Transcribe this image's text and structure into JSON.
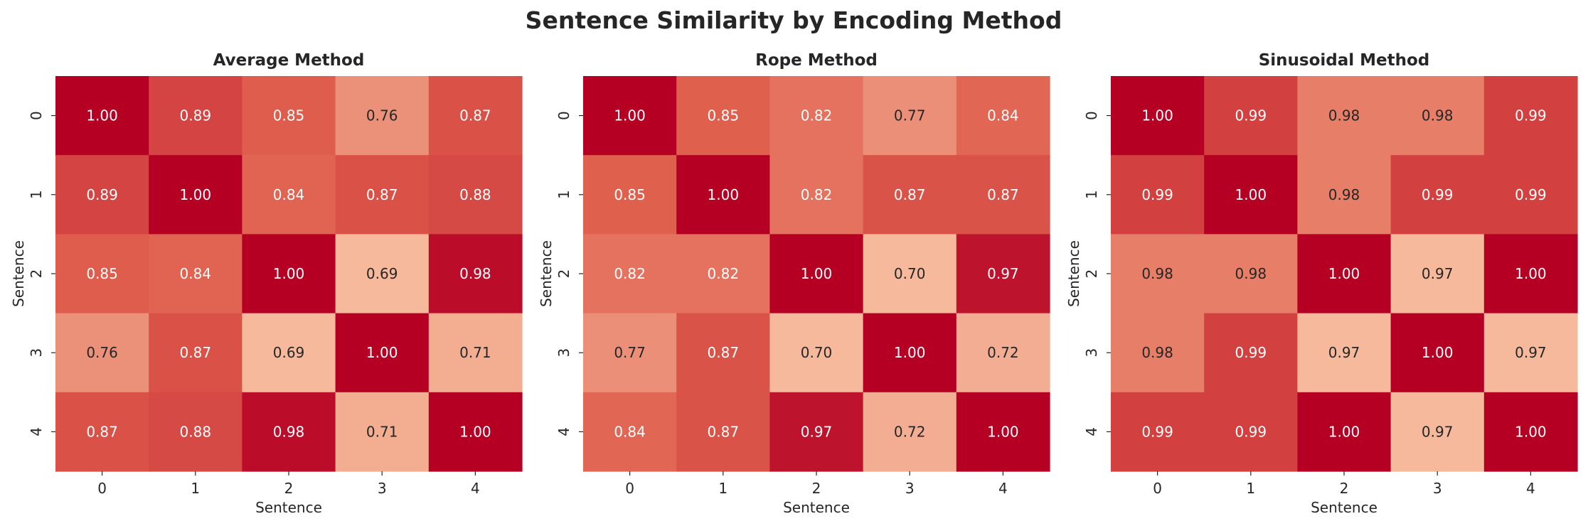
{
  "figure": {
    "title": "Sentence Similarity by Encoding Method"
  },
  "colors": {
    "low": "#f6b99c",
    "mid": "#e0604e",
    "high": "#b50024",
    "text_dark": "#262626",
    "text_light": "#ffffff"
  },
  "chart_data": [
    {
      "type": "heatmap",
      "title": "Average Method",
      "xlabel": "Sentence",
      "ylabel": "Sentence",
      "x_categories": [
        "0",
        "1",
        "2",
        "3",
        "4"
      ],
      "y_categories": [
        "0",
        "1",
        "2",
        "3",
        "4"
      ],
      "values": [
        [
          1.0,
          0.89,
          0.85,
          0.76,
          0.87
        ],
        [
          0.89,
          1.0,
          0.84,
          0.87,
          0.88
        ],
        [
          0.85,
          0.84,
          1.0,
          0.69,
          0.98
        ],
        [
          0.76,
          0.87,
          0.69,
          1.0,
          0.71
        ],
        [
          0.87,
          0.88,
          0.98,
          0.71,
          1.0
        ]
      ],
      "labels": [
        [
          "1.00",
          "0.89",
          "0.85",
          "0.76",
          "0.87"
        ],
        [
          "0.89",
          "1.00",
          "0.84",
          "0.87",
          "0.88"
        ],
        [
          "0.85",
          "0.84",
          "1.00",
          "0.69",
          "0.98"
        ],
        [
          "0.76",
          "0.87",
          "0.69",
          "1.00",
          "0.71"
        ],
        [
          "0.87",
          "0.88",
          "0.98",
          "0.71",
          "1.00"
        ]
      ]
    },
    {
      "type": "heatmap",
      "title": "Rope Method",
      "xlabel": "Sentence",
      "ylabel": "Sentence",
      "x_categories": [
        "0",
        "1",
        "2",
        "3",
        "4"
      ],
      "y_categories": [
        "0",
        "1",
        "2",
        "3",
        "4"
      ],
      "values": [
        [
          1.0,
          0.85,
          0.82,
          0.77,
          0.84
        ],
        [
          0.85,
          1.0,
          0.82,
          0.87,
          0.87
        ],
        [
          0.82,
          0.82,
          1.0,
          0.7,
          0.97
        ],
        [
          0.77,
          0.87,
          0.7,
          1.0,
          0.72
        ],
        [
          0.84,
          0.87,
          0.97,
          0.72,
          1.0
        ]
      ],
      "labels": [
        [
          "1.00",
          "0.85",
          "0.82",
          "0.77",
          "0.84"
        ],
        [
          "0.85",
          "1.00",
          "0.82",
          "0.87",
          "0.87"
        ],
        [
          "0.82",
          "0.82",
          "1.00",
          "0.70",
          "0.97"
        ],
        [
          "0.77",
          "0.87",
          "0.70",
          "1.00",
          "0.72"
        ],
        [
          "0.84",
          "0.87",
          "0.97",
          "0.72",
          "1.00"
        ]
      ]
    },
    {
      "type": "heatmap",
      "title": "Sinusoidal Method",
      "xlabel": "Sentence",
      "ylabel": "Sentence",
      "x_categories": [
        "0",
        "1",
        "2",
        "3",
        "4"
      ],
      "y_categories": [
        "0",
        "1",
        "2",
        "3",
        "4"
      ],
      "values": [
        [
          1.0,
          0.99,
          0.98,
          0.98,
          0.99
        ],
        [
          0.99,
          1.0,
          0.98,
          0.99,
          0.99
        ],
        [
          0.98,
          0.98,
          1.0,
          0.97,
          1.0
        ],
        [
          0.98,
          0.99,
          0.97,
          1.0,
          0.97
        ],
        [
          0.99,
          0.99,
          1.0,
          0.97,
          1.0
        ]
      ],
      "labels": [
        [
          "1.00",
          "0.99",
          "0.98",
          "0.98",
          "0.99"
        ],
        [
          "0.99",
          "1.00",
          "0.98",
          "0.99",
          "0.99"
        ],
        [
          "0.98",
          "0.98",
          "1.00",
          "0.97",
          "1.00"
        ],
        [
          "0.98",
          "0.99",
          "0.97",
          "1.00",
          "0.97"
        ],
        [
          "0.99",
          "0.99",
          "1.00",
          "0.97",
          "1.00"
        ]
      ]
    }
  ]
}
